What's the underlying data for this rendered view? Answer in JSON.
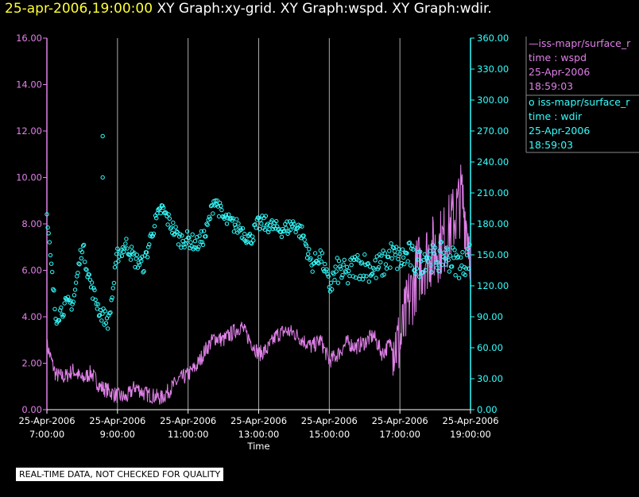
{
  "header": {
    "date": "25-apr-2006,19:00:00",
    "titles": "XY Graph:xy-grid.  XY Graph:wspd.  XY Graph:wdir."
  },
  "legend": {
    "wspd": {
      "name": "iss-mapr/surface_r",
      "line2": "time : wspd",
      "line3": "25-Apr-2006",
      "line4": "18:59:03"
    },
    "wdir": {
      "name": "iss-mapr/surface_r",
      "line2": "time : wdir",
      "line3": "25-Apr-2006",
      "line4": "18:59:03"
    }
  },
  "footer": {
    "qc_note": "REAL-TIME DATA, NOT CHECKED FOR QUALITY"
  },
  "colors": {
    "wspd": "#e080e8",
    "wdir": "#33ffff",
    "grid": "#aaaaaa",
    "axis_text": "#ffffff",
    "background": "#000000"
  },
  "chart_data": {
    "type": "line",
    "xlabel": "Time",
    "x_ticks": [
      [
        "25-Apr-2006",
        "7:00:00"
      ],
      [
        "25-Apr-2006",
        "9:00:00"
      ],
      [
        "25-Apr-2006",
        "11:00:00"
      ],
      [
        "25-Apr-2006",
        "13:00:00"
      ],
      [
        "25-Apr-2006",
        "15:00:00"
      ],
      [
        "25-Apr-2006",
        "17:00:00"
      ],
      [
        "25-Apr-2006",
        "19:00:00"
      ]
    ],
    "x_range_hours": [
      7.0,
      19.0
    ],
    "grid": "vertical lines at x ticks",
    "y_left": {
      "label": "",
      "ylim": [
        0,
        16
      ],
      "ticks": [
        "0.00",
        "2.00",
        "4.00",
        "6.00",
        "8.00",
        "10.00",
        "12.00",
        "14.00",
        "16.00"
      ]
    },
    "y_right": {
      "label": "",
      "ylim": [
        0,
        360
      ],
      "ticks": [
        "0.00",
        "30.00",
        "60.00",
        "90.00",
        "120.00",
        "150.00",
        "180.00",
        "210.00",
        "240.00",
        "270.00",
        "300.00",
        "330.00",
        "360.00"
      ]
    },
    "series": [
      {
        "name": "wspd",
        "legend_label": "iss-mapr/surface_r",
        "axis": "left",
        "style": "line",
        "x_hours": [
          7.0,
          7.25,
          7.5,
          7.75,
          8.0,
          8.25,
          8.5,
          8.75,
          9.0,
          9.25,
          9.5,
          9.75,
          10.0,
          10.25,
          10.5,
          10.75,
          11.0,
          11.25,
          11.5,
          11.75,
          12.0,
          12.25,
          12.5,
          12.75,
          13.0,
          13.25,
          13.5,
          13.75,
          14.0,
          14.25,
          14.5,
          14.75,
          15.0,
          15.25,
          15.5,
          15.75,
          16.0,
          16.25,
          16.5,
          16.75,
          17.0,
          17.25,
          17.5,
          17.75,
          18.0,
          18.25,
          18.5,
          18.75,
          19.0
        ],
        "values": [
          2.8,
          1.5,
          1.4,
          1.7,
          1.3,
          1.6,
          1.0,
          0.8,
          0.6,
          0.5,
          1.0,
          0.7,
          0.6,
          0.5,
          0.9,
          1.3,
          1.5,
          1.9,
          2.6,
          3.1,
          3.0,
          3.3,
          3.6,
          3.0,
          2.4,
          2.6,
          3.2,
          3.4,
          3.3,
          3.0,
          2.7,
          3.0,
          2.1,
          2.4,
          2.9,
          2.7,
          2.9,
          3.2,
          2.4,
          2.9,
          2.8,
          4.6,
          6.0,
          6.6,
          6.9,
          7.3,
          8.1,
          9.2,
          7.0
        ]
      },
      {
        "name": "wdir",
        "legend_label": "iss-mapr/surface_r",
        "axis": "right",
        "style": "markers",
        "x_hours": [
          7.0,
          7.25,
          7.5,
          7.75,
          8.0,
          8.25,
          8.5,
          8.75,
          9.0,
          9.25,
          9.5,
          9.75,
          10.0,
          10.25,
          10.5,
          10.75,
          11.0,
          11.25,
          11.5,
          11.75,
          12.0,
          12.25,
          12.5,
          12.75,
          13.0,
          13.25,
          13.5,
          13.75,
          14.0,
          14.25,
          14.5,
          14.75,
          15.0,
          15.25,
          15.5,
          15.75,
          16.0,
          16.25,
          16.5,
          16.75,
          17.0,
          17.25,
          17.5,
          17.75,
          18.0,
          18.25,
          18.5,
          18.75,
          19.0
        ],
        "values": [
          185,
          90,
          100,
          105,
          160,
          120,
          95,
          85,
          150,
          160,
          145,
          140,
          175,
          195,
          180,
          165,
          165,
          160,
          170,
          205,
          185,
          180,
          175,
          165,
          180,
          180,
          175,
          175,
          180,
          170,
          140,
          150,
          120,
          135,
          130,
          140,
          140,
          135,
          140,
          150,
          145,
          150,
          140,
          150,
          145,
          150,
          145,
          140,
          150
        ],
        "outliers": [
          [
            8.58,
            265
          ],
          [
            8.58,
            225
          ]
        ]
      }
    ]
  }
}
